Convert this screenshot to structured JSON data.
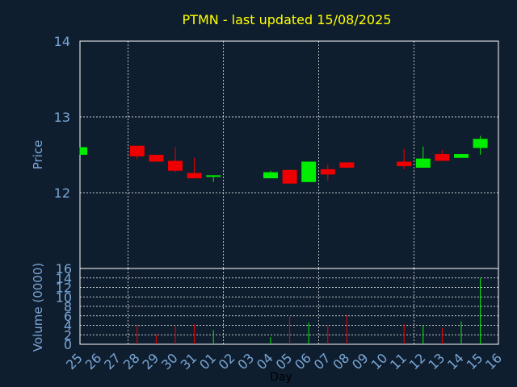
{
  "chart_data": [
    {
      "type": "candlestick",
      "title": "PTMN - last updated 15/08/2025",
      "ylabel": "Price",
      "ylim": [
        12,
        14
      ],
      "yticks": [
        "14",
        "13",
        "12"
      ],
      "grid": true,
      "colors": {
        "up": "#00ee00",
        "down": "#ee0000",
        "title": "#ffff00",
        "text": "#7aa6d6",
        "grid": "#ffffff",
        "axis": "#ffffff",
        "background": "#0f1e2e"
      },
      "x": [
        "25",
        "26",
        "27",
        "28",
        "29",
        "30",
        "31",
        "01",
        "02",
        "03",
        "04",
        "05",
        "06",
        "07",
        "08",
        "09",
        "10",
        "11",
        "12",
        "13",
        "14",
        "15",
        "16"
      ],
      "candles": [
        {
          "day": "25",
          "open": 12.5,
          "close": 12.6,
          "high": 12.6,
          "low": 12.5
        },
        {
          "day": "28",
          "open": 12.62,
          "close": 12.48,
          "high": 12.62,
          "low": 12.44
        },
        {
          "day": "29",
          "open": 12.5,
          "close": 12.41,
          "high": 12.5,
          "low": 12.41
        },
        {
          "day": "30",
          "open": 12.42,
          "close": 12.29,
          "high": 12.6,
          "low": 12.27
        },
        {
          "day": "31",
          "open": 12.26,
          "close": 12.19,
          "high": 12.46,
          "low": 12.19
        },
        {
          "day": "01",
          "open": 12.21,
          "close": 12.23,
          "high": 12.23,
          "low": 12.14
        },
        {
          "day": "04",
          "open": 12.19,
          "close": 12.27,
          "high": 12.29,
          "low": 12.19
        },
        {
          "day": "05",
          "open": 12.3,
          "close": 12.12,
          "high": 12.3,
          "low": 12.12
        },
        {
          "day": "06",
          "open": 12.14,
          "close": 12.41,
          "high": 12.41,
          "low": 12.14
        },
        {
          "day": "07",
          "open": 12.31,
          "close": 12.24,
          "high": 12.37,
          "low": 12.16
        },
        {
          "day": "08",
          "open": 12.4,
          "close": 12.33,
          "high": 12.4,
          "low": 12.33
        },
        {
          "day": "11",
          "open": 12.41,
          "close": 12.35,
          "high": 12.58,
          "low": 12.31
        },
        {
          "day": "12",
          "open": 12.33,
          "close": 12.45,
          "high": 12.61,
          "low": 12.33
        },
        {
          "day": "13",
          "open": 12.51,
          "close": 12.42,
          "high": 12.56,
          "low": 12.42
        },
        {
          "day": "14",
          "open": 12.46,
          "close": 12.51,
          "high": 12.51,
          "low": 12.46
        },
        {
          "day": "15",
          "open": 12.59,
          "close": 12.71,
          "high": 12.75,
          "low": 12.5
        }
      ]
    },
    {
      "type": "bar",
      "ylabel": "Volume (0000)",
      "xlabel": "Day",
      "ylim": [
        0,
        16
      ],
      "yticks": [
        "0",
        "2",
        "4",
        "6",
        "8",
        "10",
        "12",
        "14",
        "16"
      ],
      "x": [
        "25",
        "26",
        "27",
        "28",
        "29",
        "30",
        "31",
        "01",
        "02",
        "03",
        "04",
        "05",
        "06",
        "07",
        "08",
        "09",
        "10",
        "11",
        "12",
        "13",
        "14",
        "15",
        "16"
      ],
      "volumes": [
        {
          "day": "28",
          "value": 4.0,
          "dir": "down"
        },
        {
          "day": "29",
          "value": 2.0,
          "dir": "down"
        },
        {
          "day": "30",
          "value": 3.8,
          "dir": "down"
        },
        {
          "day": "31",
          "value": 4.2,
          "dir": "down"
        },
        {
          "day": "01",
          "value": 3.0,
          "dir": "up"
        },
        {
          "day": "04",
          "value": 1.5,
          "dir": "up"
        },
        {
          "day": "05",
          "value": 5.8,
          "dir": "down"
        },
        {
          "day": "06",
          "value": 4.6,
          "dir": "up"
        },
        {
          "day": "07",
          "value": 4.0,
          "dir": "down"
        },
        {
          "day": "08",
          "value": 6.2,
          "dir": "down"
        },
        {
          "day": "11",
          "value": 4.2,
          "dir": "down"
        },
        {
          "day": "12",
          "value": 4.0,
          "dir": "up"
        },
        {
          "day": "13",
          "value": 3.5,
          "dir": "down"
        },
        {
          "day": "14",
          "value": 4.8,
          "dir": "up"
        },
        {
          "day": "15",
          "value": 14.0,
          "dir": "up"
        }
      ]
    }
  ]
}
